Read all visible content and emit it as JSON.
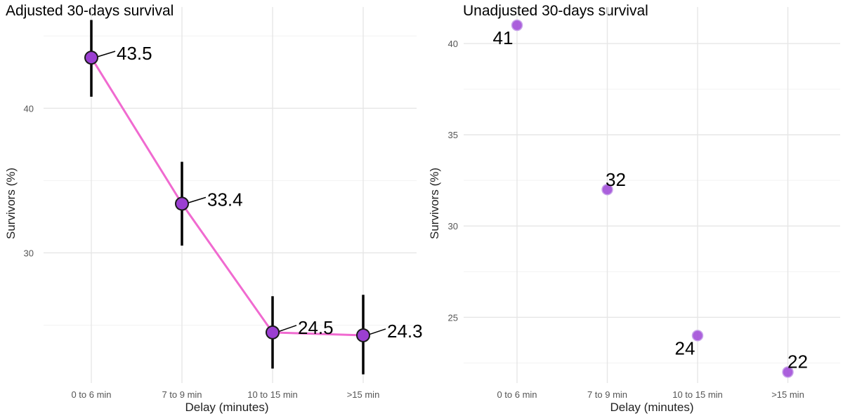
{
  "chart_data": [
    {
      "type": "line",
      "title": "Adjusted 30-days survival",
      "xlabel": "Delay (minutes)",
      "ylabel": "Survivors (%)",
      "categories": [
        "0 to 6 min",
        "7 to 9 min",
        "10 to 15 min",
        ">15 min"
      ],
      "series": [
        {
          "values": [
            43.5,
            33.4,
            24.5,
            24.3
          ],
          "lower": [
            40.8,
            30.5,
            22.0,
            21.6
          ],
          "upper": [
            46.1,
            36.3,
            27.0,
            27.1
          ],
          "labels": [
            "43.5",
            "33.4",
            "24.5",
            "24.3"
          ]
        }
      ],
      "yticks": [
        30,
        40
      ],
      "ylim": [
        21.0,
        47.0
      ],
      "grid": true,
      "colors": {
        "line": "#f06ad0",
        "point": "#9b3fd1",
        "point_edge": "#1a1a1a",
        "errorbar": "#000000"
      }
    },
    {
      "type": "scatter",
      "title": "Unadjusted 30-days survival",
      "xlabel": "Delay (minutes)",
      "ylabel": "Survivors (%)",
      "categories": [
        "0 to 6 min",
        "7 to 9 min",
        "10 to 15 min",
        ">15 min"
      ],
      "series": [
        {
          "values": [
            41,
            32,
            24,
            22
          ],
          "labels": [
            "41",
            "32",
            "24",
            "22"
          ]
        }
      ],
      "yticks": [
        25,
        30,
        35,
        40
      ],
      "ylim": [
        21.4,
        42.0
      ],
      "grid": true,
      "colors": {
        "point": "#a24fd8"
      }
    }
  ]
}
